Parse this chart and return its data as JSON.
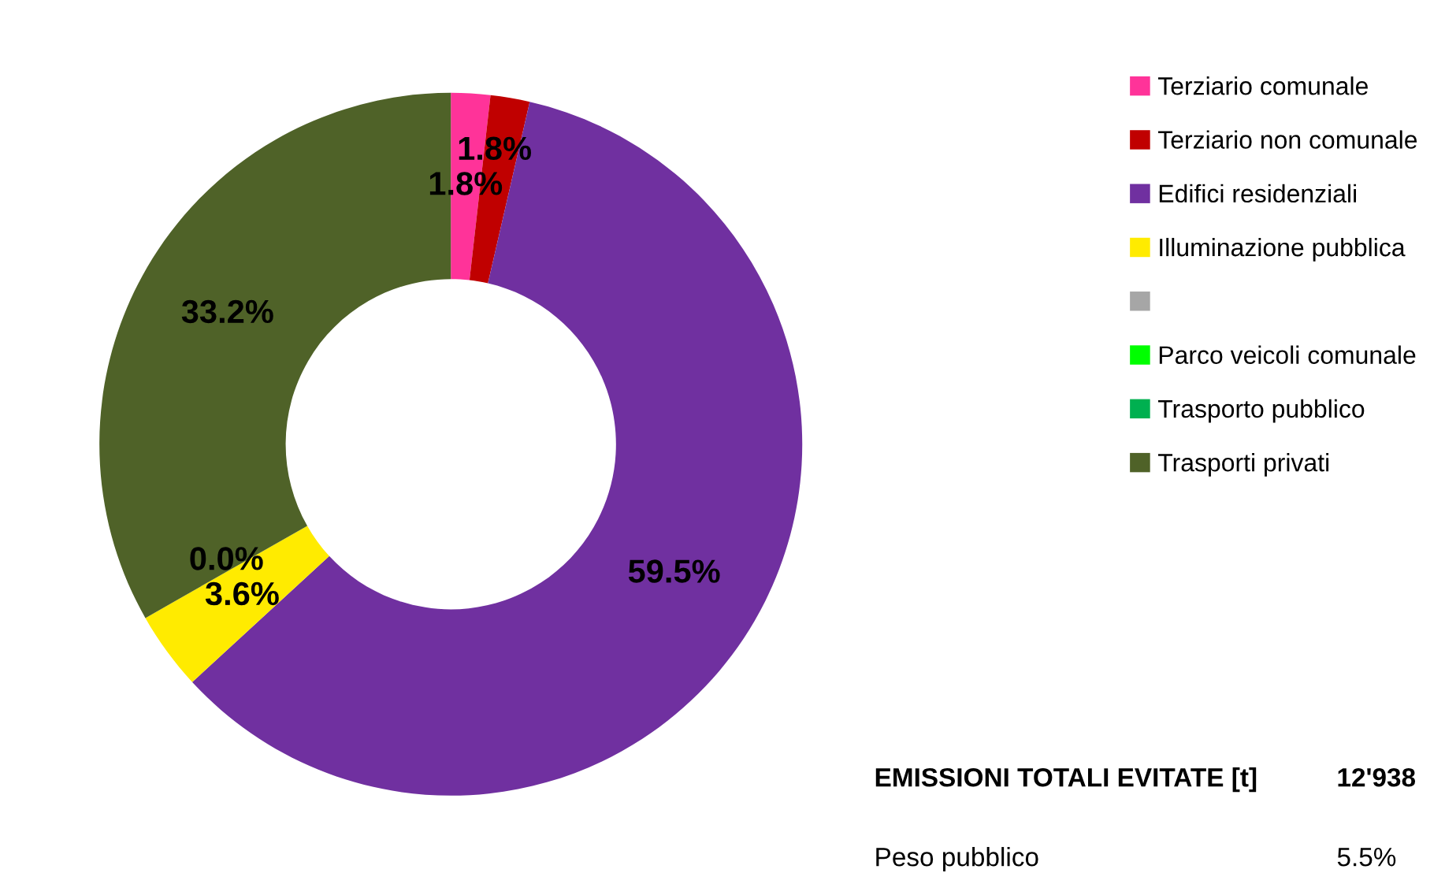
{
  "chart_data": {
    "type": "donut",
    "categories": [
      "Terziario comunale",
      "Terziario non comunale",
      "Edifici residenziali",
      "Illuminazione pubblica",
      null,
      "Parco veicoli comunale",
      "Trasporto pubblico",
      "Trasporti privati"
    ],
    "values": [
      1.8,
      1.8,
      59.5,
      3.6,
      0.0,
      0.0,
      0.0,
      33.2
    ],
    "colors": [
      "#ff3399",
      "#c00000",
      "#7030a0",
      "#ffeb00",
      "#a6a6a6",
      "#00ff00",
      "#00b050",
      "#4f6228"
    ],
    "value_labels": [
      "1.8%",
      "1.8%",
      "59.5%",
      "3.6%",
      "0.0%",
      null,
      null,
      "33.2%"
    ],
    "legend": "right",
    "annotations": [
      "EMISSIONI TOTALI EVITATE [t]",
      "12'938",
      "Peso pubblico",
      "5.5%"
    ]
  }
}
